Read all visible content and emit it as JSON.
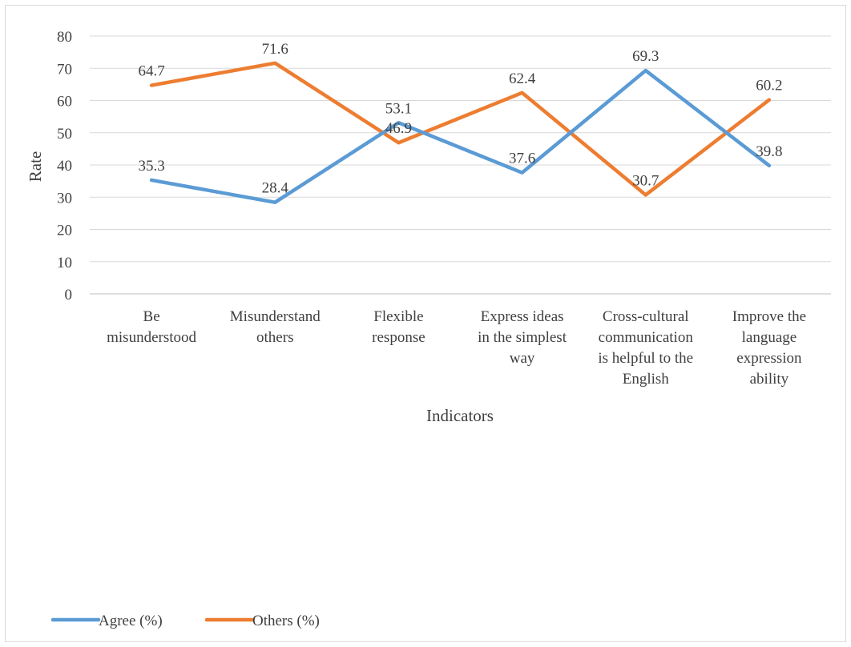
{
  "chart_data": {
    "type": "line",
    "categories": [
      [
        "Be",
        "misunderstood"
      ],
      [
        "Misunderstand",
        "others"
      ],
      [
        "Flexible",
        "response"
      ],
      [
        "Express ideas",
        "in the simplest",
        "way"
      ],
      [
        "Cross-cultural",
        "communication",
        "is helpful to the",
        "English"
      ],
      [
        "Improve the",
        "language",
        "expression",
        "ability"
      ]
    ],
    "series": [
      {
        "name": "Agree (%)",
        "color": "#5b9bd5",
        "values": [
          35.3,
          28.4,
          53.1,
          37.6,
          69.3,
          39.8
        ],
        "labels": [
          "35.3",
          "28.4",
          "53.1",
          "37.6",
          "69.3",
          "39.8"
        ]
      },
      {
        "name": "Others (%)",
        "color": "#ed7d31",
        "values": [
          64.7,
          71.6,
          46.9,
          62.4,
          30.7,
          60.2
        ],
        "labels": [
          "64.7",
          "71.6",
          "46.9",
          "62.4",
          "30.7",
          "60.2"
        ]
      }
    ],
    "xlabel": "Indicators",
    "ylabel": "Rate",
    "ylim": [
      0,
      80
    ],
    "yticks": [
      "0",
      "10",
      "20",
      "30",
      "40",
      "50",
      "60",
      "70",
      "80"
    ],
    "grid": true,
    "legend_position": "bottom-left"
  }
}
